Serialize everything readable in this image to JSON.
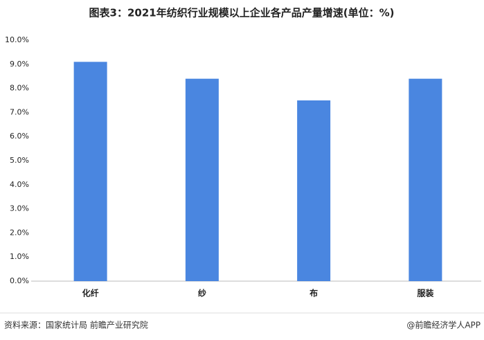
{
  "chart_data": {
    "type": "bar",
    "title": "图表3：2021年纺织行业规模以上企业各产品产量增速(单位：%)",
    "categories": [
      "化纤",
      "纱",
      "布",
      "服装"
    ],
    "values": [
      9.1,
      8.4,
      7.5,
      8.4
    ],
    "color": "#4a86e0",
    "ylim": [
      0,
      10
    ],
    "yticks": [
      {
        "value": 0,
        "label": "0.0%"
      },
      {
        "value": 1,
        "label": "1.0%"
      },
      {
        "value": 2,
        "label": "2.0%"
      },
      {
        "value": 3,
        "label": "3.0%"
      },
      {
        "value": 4,
        "label": "4.0%"
      },
      {
        "value": 5,
        "label": "5.0%"
      },
      {
        "value": 6,
        "label": "6.0%"
      },
      {
        "value": 7,
        "label": "7.0%"
      },
      {
        "value": 8,
        "label": "8.0%"
      },
      {
        "value": 9,
        "label": "9.0%"
      },
      {
        "value": 10,
        "label": "10.0%"
      }
    ],
    "grid": false
  },
  "footer": {
    "source": "资料来源：国家统计局 前瞻产业研究院",
    "brand": "@前瞻经济学人APP"
  }
}
